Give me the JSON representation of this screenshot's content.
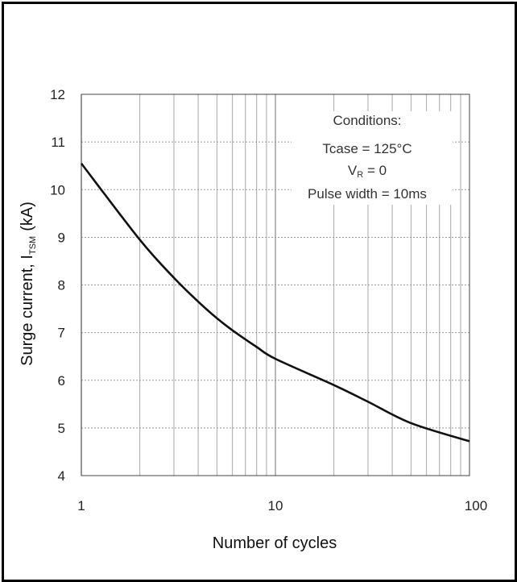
{
  "chart_data": {
    "type": "line",
    "xlabel": "Number of cycles",
    "ylabel": "Surge current, I",
    "ylabel_subscript": "TSM",
    "ylabel_unit": "(kA)",
    "xscale": "log",
    "xlim": [
      1,
      100
    ],
    "ylim": [
      4,
      12
    ],
    "grid": true,
    "x_ticks": [
      "1",
      "10",
      "100"
    ],
    "y_ticks": [
      "4",
      "5",
      "6",
      "7",
      "8",
      "9",
      "10",
      "11",
      "12"
    ],
    "annotation": {
      "title": "Conditions:",
      "tcase": "Tcase = 125°C",
      "vr_main": "V",
      "vr_sub": "R",
      "vr_value": " = 0",
      "pulse": "Pulse width = 10ms"
    },
    "series": [
      {
        "x": [
          1,
          2,
          3,
          4,
          5,
          6,
          8,
          10,
          20,
          30,
          50,
          100
        ],
        "y": [
          10.55,
          8.95,
          8.15,
          7.65,
          7.3,
          7.05,
          6.7,
          6.45,
          5.9,
          5.55,
          5.1,
          4.72
        ]
      }
    ]
  }
}
